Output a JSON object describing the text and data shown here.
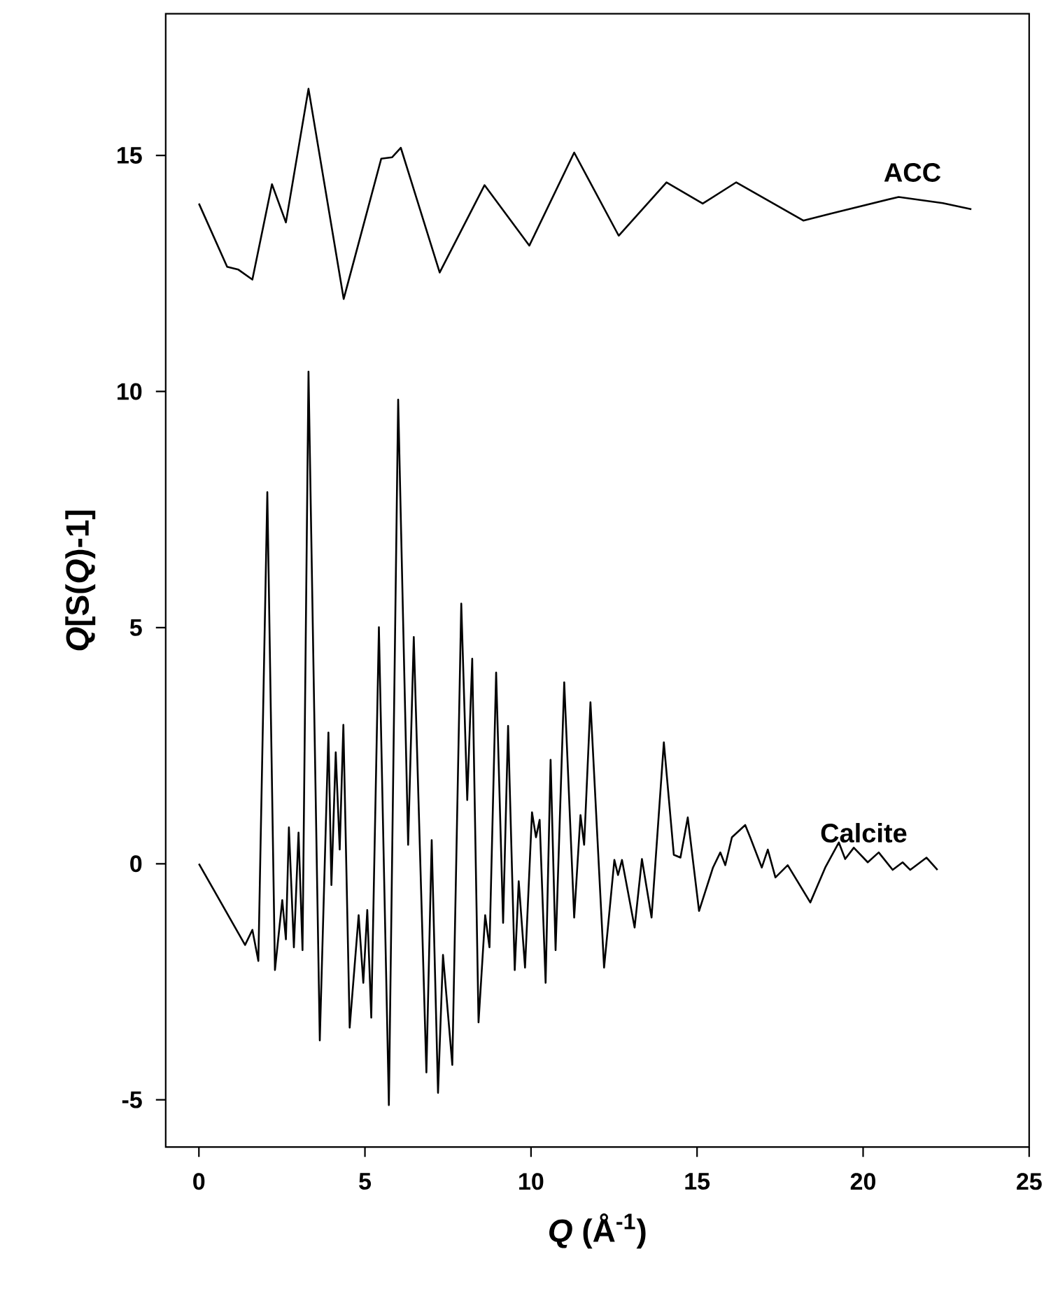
{
  "chart_data": {
    "type": "line",
    "xlabel": "*Q* (Å$^{-1}$)",
    "ylabel": "*Q*[S(*Q*)-1]",
    "xlim": [
      -1,
      25
    ],
    "ylim": [
      -6,
      18
    ],
    "xticks": [
      0,
      5,
      10,
      15,
      20,
      25
    ],
    "yticks": [
      -5,
      0,
      5,
      10,
      15
    ],
    "marker": "none",
    "line_style": "solid",
    "legend": false,
    "grid": false,
    "series": [
      {
        "name": "ACC",
        "color": "#000000",
        "x": [
          0.0,
          0.85,
          1.19,
          1.61,
          2.2,
          2.62,
          3.3,
          4.36,
          5.49,
          5.82,
          6.08,
          7.25,
          8.6,
          9.95,
          11.3,
          12.64,
          14.08,
          15.17,
          16.18,
          18.2,
          19.05,
          21.07,
          22.4,
          23.26
        ],
        "values": [
          13.98,
          12.64,
          12.58,
          12.37,
          14.39,
          13.58,
          16.41,
          11.96,
          14.93,
          14.96,
          15.16,
          12.52,
          14.37,
          13.09,
          15.06,
          13.3,
          14.43,
          13.98,
          14.43,
          13.62,
          13.77,
          14.12,
          13.99,
          13.86
        ]
      },
      {
        "name": "Calcite",
        "color": "#000000",
        "x": [
          0,
          1.39,
          1.61,
          1.79,
          2.06,
          2.29,
          2.51,
          2.62,
          2.71,
          2.86,
          3.0,
          3.12,
          3.3,
          3.64,
          3.9,
          3.99,
          4.12,
          4.24,
          4.35,
          4.54,
          4.81,
          4.95,
          5.07,
          5.19,
          5.42,
          5.72,
          6.0,
          6.3,
          6.47,
          6.85,
          7.01,
          7.2,
          7.35,
          7.63,
          7.9,
          8.08,
          8.23,
          8.42,
          8.62,
          8.75,
          8.95,
          9.16,
          9.31,
          9.51,
          9.63,
          9.82,
          10.03,
          10.15,
          10.26,
          10.44,
          10.59,
          10.74,
          11.0,
          11.3,
          11.49,
          11.6,
          11.79,
          12.2,
          12.51,
          12.62,
          12.74,
          13.12,
          13.34,
          13.63,
          14.0,
          14.3,
          14.5,
          14.72,
          15.06,
          15.48,
          15.7,
          15.85,
          16.05,
          16.45,
          16.6,
          16.95,
          17.13,
          17.36,
          17.73,
          18.41,
          18.86,
          19.27,
          19.46,
          19.72,
          20.14,
          20.47,
          20.89,
          21.19,
          21.42,
          21.91,
          22.24
        ],
        "values": [
          0,
          -1.72,
          -1.4,
          -2.06,
          7.87,
          -2.25,
          -0.77,
          -1.6,
          0.77,
          -1.77,
          0.66,
          -1.83,
          10.42,
          -3.74,
          2.78,
          -0.45,
          2.36,
          0.3,
          2.94,
          -3.47,
          -1.09,
          -2.52,
          -0.98,
          -3.26,
          5.01,
          -5.11,
          9.83,
          0.4,
          4.8,
          -4.42,
          0.5,
          -4.85,
          -1.93,
          -4.26,
          5.51,
          1.35,
          4.34,
          -3.36,
          -1.09,
          -1.77,
          4.05,
          -1.25,
          2.92,
          -2.25,
          -0.37,
          -2.2,
          1.09,
          0.56,
          0.93,
          -2.52,
          2.2,
          -1.83,
          3.84,
          -1.14,
          1.03,
          0.4,
          3.42,
          -2.2,
          0.08,
          -0.24,
          0.08,
          -1.35,
          0.1,
          -1.14,
          2.57,
          0.19,
          0.13,
          0.98,
          -1.0,
          -0.08,
          0.24,
          -0.03,
          0.56,
          0.82,
          0.56,
          -0.08,
          0.3,
          -0.29,
          -0.03,
          -0.82,
          -0.08,
          0.45,
          0.1,
          0.34,
          0.03,
          0.24,
          -0.13,
          0.03,
          -0.13,
          0.13,
          -0.13
        ]
      }
    ]
  }
}
